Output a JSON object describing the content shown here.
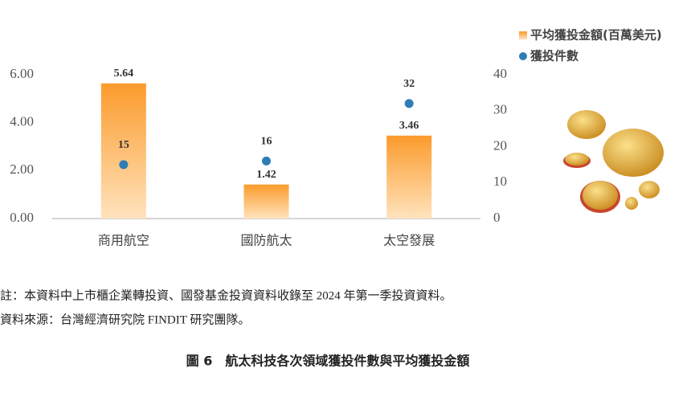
{
  "chart_data": {
    "type": "bar",
    "categories": [
      "商用航空",
      "國防航太",
      "太空發展"
    ],
    "series": [
      {
        "name": "平均獲投金額(百萬美元)",
        "type": "bar",
        "color": "#fb9b2c",
        "values": [
          5.64,
          1.42,
          3.46
        ]
      },
      {
        "name": "獲投件數",
        "type": "scatter",
        "axis": "y2",
        "color": "#2e7db5",
        "values": [
          15,
          16,
          32
        ]
      }
    ],
    "ylim": [
      0,
      6
    ],
    "yticks": [
      {
        "value": 0,
        "label": "0.00"
      },
      {
        "value": 2,
        "label": "2.00"
      },
      {
        "value": 4,
        "label": "4.00"
      },
      {
        "value": 6,
        "label": "6.00"
      }
    ],
    "y2lim": [
      0,
      40
    ],
    "y2ticks": [
      0,
      10,
      20,
      30,
      40
    ],
    "grid": false,
    "legend": "upper right"
  },
  "notes": [
    "註：本資料中上市櫃企業轉投資、國發基金投資資料收錄至 2024 年第一季投資資料。",
    "資料來源：台灣經濟研究院 FINDIT 研究團隊。"
  ],
  "caption": "圖 6　航太科技各次領域獲投件數與平均獲投金額"
}
